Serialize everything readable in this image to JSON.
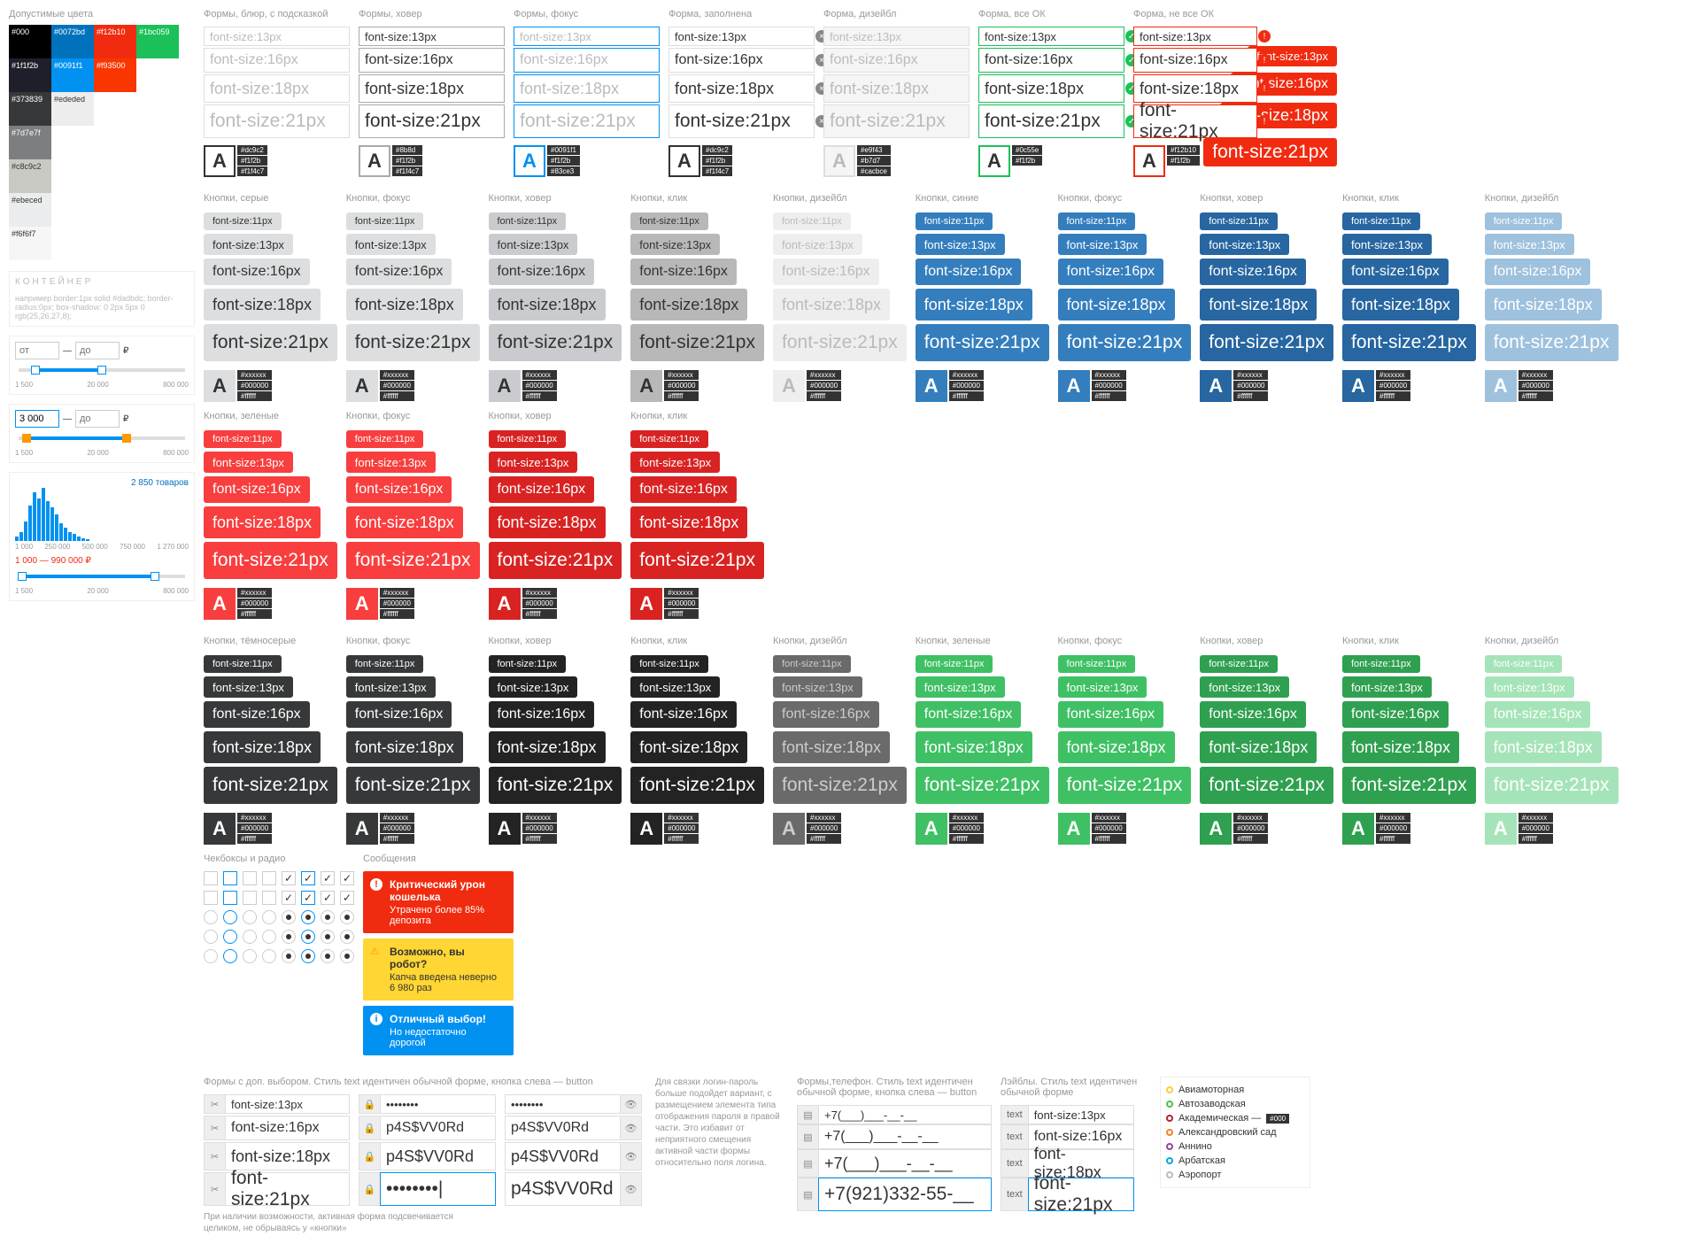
{
  "palette_title": "Допустимые цвета",
  "palette": [
    {
      "hex": "#000",
      "light": false
    },
    {
      "hex": "#0072bd",
      "light": false
    },
    {
      "hex": "#f12b10",
      "light": false
    },
    {
      "hex": "#1bc059",
      "light": false
    },
    {
      "hex": "#1f1f2b",
      "light": false
    },
    {
      "hex": "#0091f1",
      "light": false
    },
    {
      "hex": "#f93500",
      "light": false
    },
    {
      "hex": "#373839",
      "light": false
    },
    {
      "hex": "#ededed",
      "light": true
    },
    {
      "hex": "#7d7e7f",
      "light": false
    },
    {
      "hex": "#c8c9c2",
      "light": true
    },
    {
      "hex": "#ebeced",
      "light": true
    },
    {
      "hex": "#f6f6f7",
      "light": true
    }
  ],
  "palette_row_lengths": [
    4,
    3,
    2,
    1,
    1,
    1,
    1
  ],
  "form_cols": [
    {
      "t": "Формы, блюр, с подсказкой",
      "cls": "",
      "ph": true
    },
    {
      "t": "Формы, ховер",
      "cls": "hover",
      "ph": false
    },
    {
      "t": "Формы, фокус",
      "cls": "focus",
      "ph": true
    },
    {
      "t": "Форма, заполнена",
      "cls": "",
      "ph": false,
      "clear": true
    },
    {
      "t": "Форма, дизейбл",
      "cls": "dis",
      "ph": true
    },
    {
      "t": "Форма, все ОК",
      "cls": "ok",
      "ph": false,
      "okicon": true
    },
    {
      "t": "Форма, не все ОК",
      "cls": "err",
      "ph": false,
      "erricon": true,
      "chip": true
    }
  ],
  "sizes": [
    {
      "s": 13,
      "txt": "font-size:13px"
    },
    {
      "s": 16,
      "txt": "font-size:16px"
    },
    {
      "s": 18,
      "txt": "font-size:18px"
    },
    {
      "s": 21,
      "txt": "font-size:21px"
    }
  ],
  "swatchA_sets": [
    {
      "border": "#333",
      "bg": "#fff",
      "color": "#333",
      "tags": [
        "#dc9c2",
        "#f1f2b",
        "#f1f4c7"
      ]
    },
    {
      "border": "#aaa",
      "bg": "#fff",
      "color": "#333",
      "tags": [
        "#8b8d",
        "#f1f2b",
        "#f1f4c7"
      ]
    },
    {
      "border": "#0091f1",
      "bg": "#fff",
      "color": "#0091f1",
      "tags": [
        "#0091f1",
        "#f1f2b",
        "#83ce3"
      ]
    },
    {
      "border": "#333",
      "bg": "#fff",
      "color": "#333",
      "tags": [
        "#dc9c2",
        "#f1f2b",
        "#f1f4c7"
      ]
    },
    {
      "border": "#ddd",
      "bg": "#f5f5f5",
      "color": "#bbb",
      "tags": [
        "#e9f43",
        "#b7d7",
        "#cacbce"
      ]
    },
    {
      "border": "#1bc059",
      "bg": "#fff",
      "color": "#333",
      "tags": [
        "#0c55e",
        "#f1f2b"
      ]
    },
    {
      "border": "#f12b10",
      "bg": "#fff",
      "color": "#333",
      "tags": [
        "#f12b10",
        "#f1f2b"
      ]
    }
  ],
  "btn_groups1": [
    {
      "t": "Кнопки, серые",
      "cls": "bgray"
    },
    {
      "t": "Кнопки, фокус",
      "cls": "bgray"
    },
    {
      "t": "Кнопки, ховер",
      "cls": "bgray-h"
    },
    {
      "t": "Кнопки, клик",
      "cls": "bgray-a"
    },
    {
      "t": "Кнопки, дизейбл",
      "cls": "bgray-d"
    },
    {
      "t": "Кнопки, синие",
      "cls": "bblue"
    },
    {
      "t": "Кнопки, фокус",
      "cls": "bblue"
    },
    {
      "t": "Кнопки, ховер",
      "cls": "bblue-h"
    },
    {
      "t": "Кнопки, клик",
      "cls": "bblue-h"
    },
    {
      "t": "Кнопки, дизейбл",
      "cls": "bblue-d"
    },
    {
      "t": "Кнопки, зеленые",
      "cls": "bgreen"
    },
    {
      "t": "Кнопки, фокус",
      "cls": "bgreen"
    },
    {
      "t": "Кнопки, ховер",
      "cls": "bgreen-h"
    },
    {
      "t": "Кнопки, клик",
      "cls": "bgreen-h"
    }
  ],
  "btn_groups2": [
    {
      "t": "Кнопки, тёмносерые",
      "cls": "bdark"
    },
    {
      "t": "Кнопки, фокус",
      "cls": "bdark"
    },
    {
      "t": "Кнопки, ховер",
      "cls": "bdark-h"
    },
    {
      "t": "Кнопки, клик",
      "cls": "bdark-h"
    },
    {
      "t": "Кнопки, дизейбл",
      "cls": "bdark-d"
    },
    {
      "t": "Кнопки, зеленые",
      "cls": "bgr"
    },
    {
      "t": "Кнопки, фокус",
      "cls": "bgr"
    },
    {
      "t": "Кнопки, ховер",
      "cls": "bgr-h"
    },
    {
      "t": "Кнопки, клик",
      "cls": "bgr-h"
    },
    {
      "t": "Кнопки, дизейбл",
      "cls": "bgr-d"
    }
  ],
  "btn_sizes": [
    {
      "s": 11,
      "txt": "font-size:11px"
    },
    {
      "s": 13,
      "txt": "font-size:13px"
    },
    {
      "s": 16,
      "txt": "font-size:16px"
    },
    {
      "s": 18,
      "txt": "font-size:18px"
    },
    {
      "s": 21,
      "txt": "font-size:21px"
    }
  ],
  "cb_title": "Чекбоксы и радио",
  "msg_title": "Сообщения",
  "msgs": [
    {
      "cls": "red",
      "h": "Критический урон кошелька",
      "b": "Утрачено более 85% депозита"
    },
    {
      "cls": "yel",
      "h": "Возможно, вы робот?",
      "b": "Капча введена неверно 6 980 раз"
    },
    {
      "cls": "blu",
      "h": "Отличный выбор!",
      "b": "Но недостаточно дорогой"
    }
  ],
  "combo_title": "Формы с доп. выбором. Стиль text идентичен обычной форме, кнопка слева — button",
  "combo_note": "При наличии возможности, активная форма подсвечивается целиком, не обрываясь у «кнопки»",
  "combo_right_note": "Для связки логин-пароль больше подойдет вариант, с размещением элемента типа отображения пароля в правой части. Это избавит от неприятного смещения активной части формы относительно поля логина.",
  "pwd_masked": "••••••••",
  "pwd_plain": "p4S$VV0Rd",
  "phone_title": "Формы,телефон. Стиль text идентичен обычной форме, кнопка слева — button",
  "phones": [
    "+7(___)___-__-__",
    "+7(___)___-__-__",
    "+7(___)___-__-__",
    "+7(921)332-55-__"
  ],
  "label_title": "Лэйблы. Стиль text идентичен обычной форме",
  "label_prefix": "text",
  "metro_title": "",
  "metro": [
    {
      "c": "#ffcb31",
      "n": "Авиамоторная"
    },
    {
      "c": "#4ec04e",
      "n": "Автозаводская"
    },
    {
      "c": "#b7202e",
      "n": "Академическая —",
      "cnt": "#000"
    },
    {
      "c": "#f58220",
      "n": "Александровский сад"
    },
    {
      "c": "#8e479b",
      "n": "Аннино"
    },
    {
      "c": "#00a9e0",
      "n": "Арбатская"
    },
    {
      "c": "#bbb",
      "n": "Аэропорт"
    }
  ],
  "metro_badge": "#ebeced",
  "hist_title": "2 850 товаров",
  "hist_bars": [
    5,
    10,
    22,
    40,
    55,
    48,
    60,
    45,
    38,
    30,
    20,
    15,
    10,
    8,
    5,
    3,
    2
  ],
  "hist_ticks": [
    "1 000",
    "250 000",
    "500 000",
    "750 000",
    "1 270 000"
  ],
  "price_range": "1 000 — 990 000 ₽",
  "slider_ticks": [
    "1 500",
    "20 000",
    "800 000"
  ],
  "range_from": "от",
  "range_to": "до",
  "cur": "₽",
  "range2_val": "3 000",
  "container_label": "КОНТЕЙНЕР",
  "container_note": "например border:1px solid #dadbdc; border-radius:0px; box-shadow: 0 2px 5px 0 rgb(25,26,27,8);"
}
